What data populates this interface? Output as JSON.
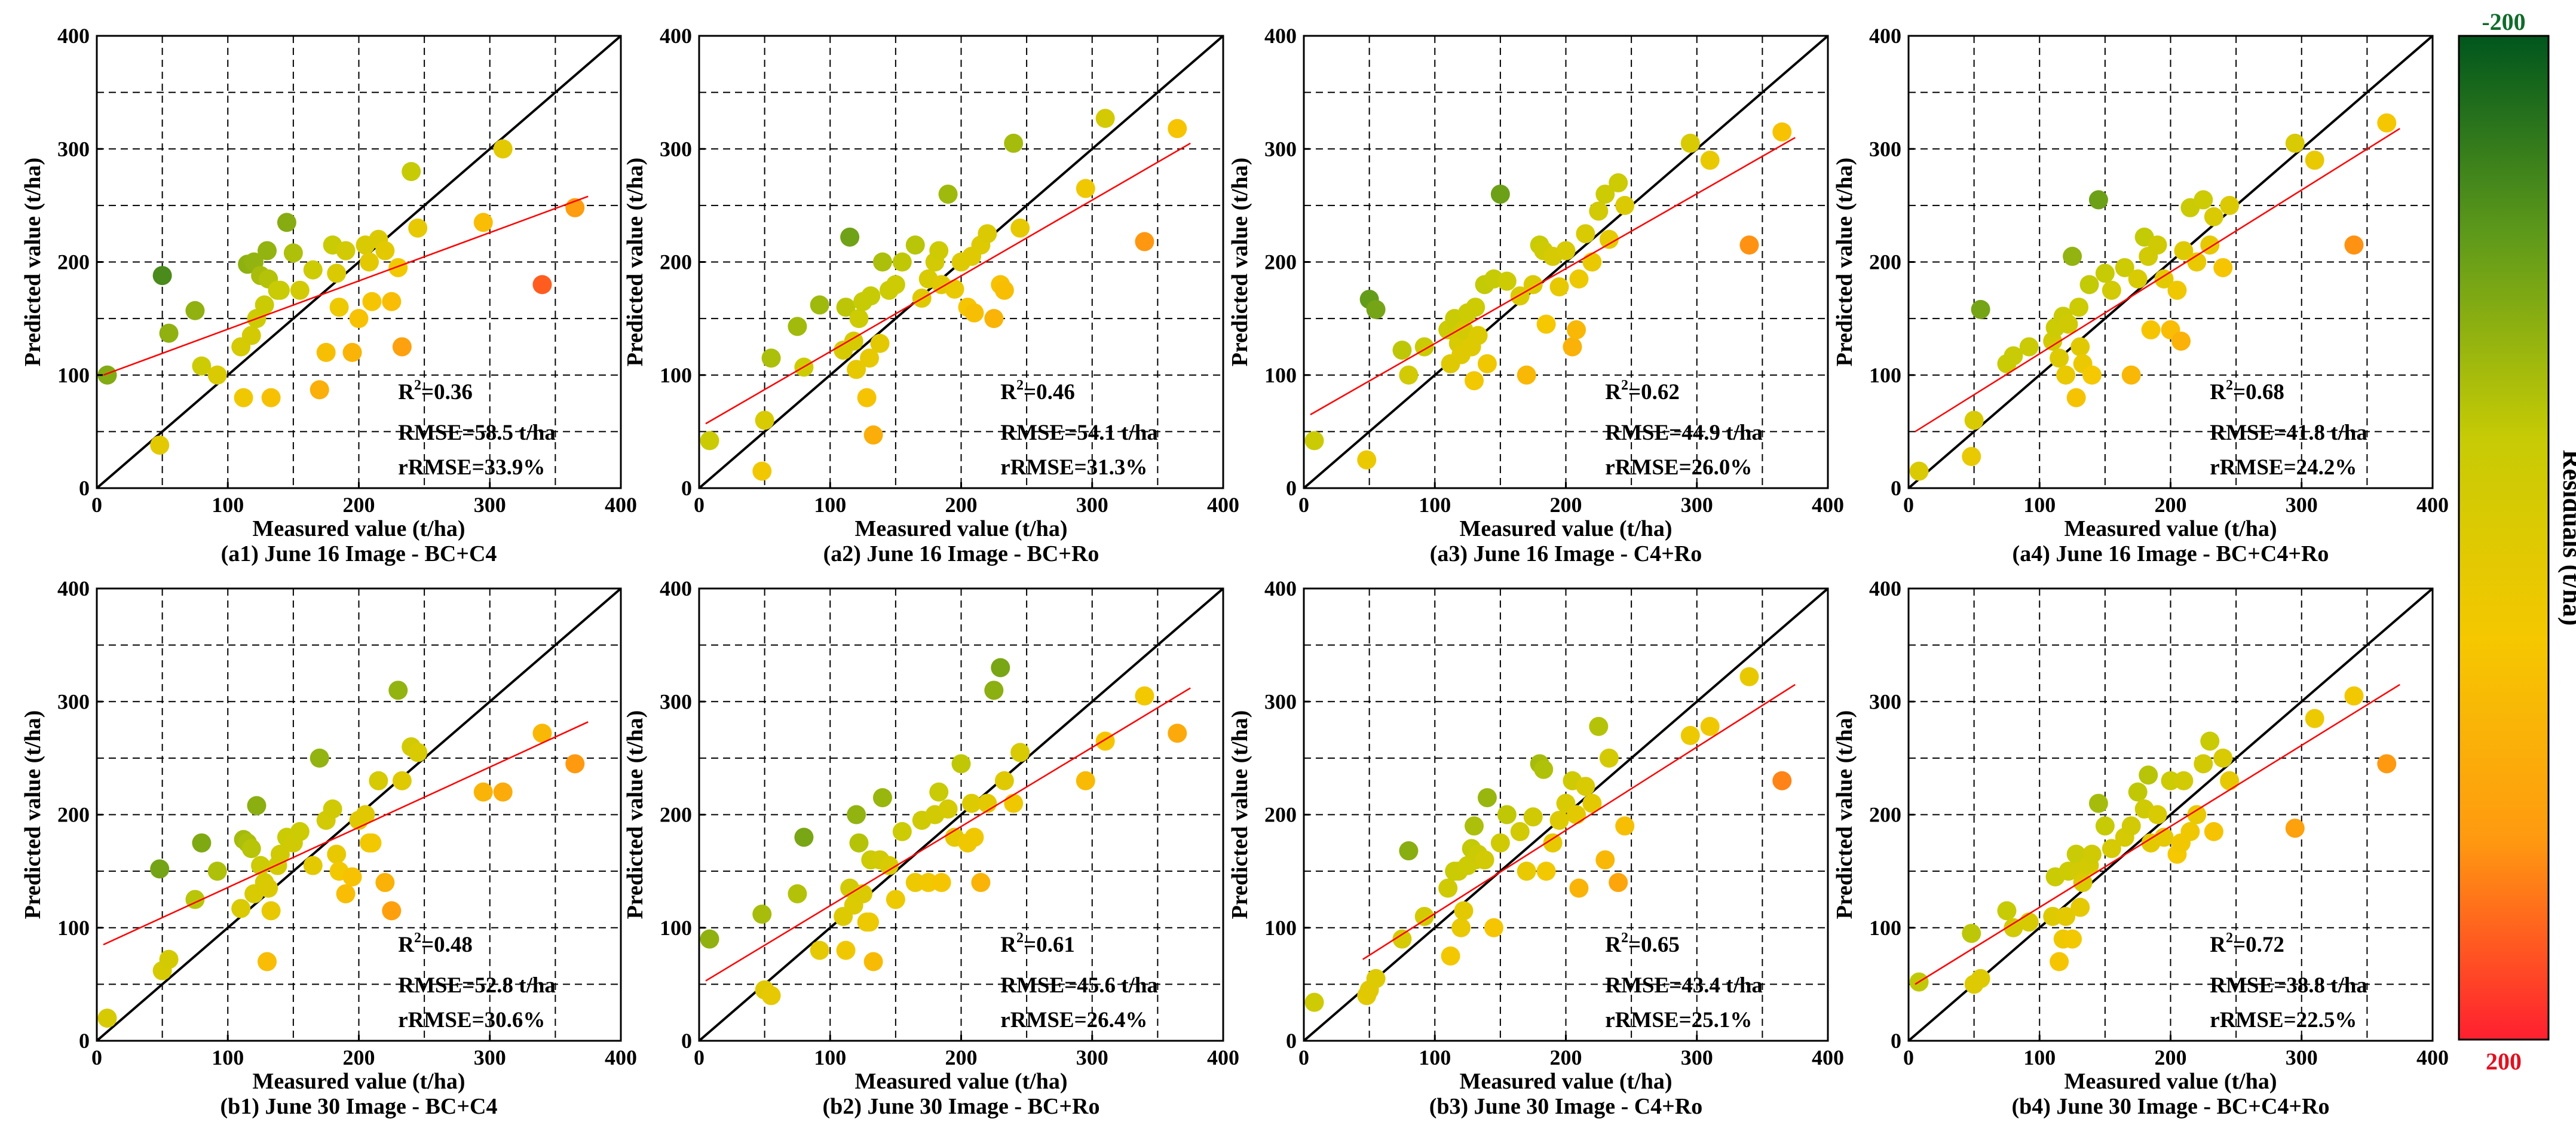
{
  "colorbar": {
    "label": "Residuals (t/ha)",
    "top_tick": "-200",
    "bottom_tick": "200",
    "colors": [
      "#00561d",
      "#5f9a1a",
      "#c6cb05",
      "#f5c800",
      "#ff9a10",
      "#ff1f30"
    ]
  },
  "chart_data": [
    {
      "type": "scatter",
      "caption": "(a1) June 16 Image - BC+C4",
      "xlabel": "Measured value (t/ha)",
      "ylabel": "Predicted value (t/ha)",
      "xlim": [
        0,
        400
      ],
      "ylim": [
        0,
        400
      ],
      "ticks": [
        "0",
        "100",
        "200",
        "300",
        "400"
      ],
      "r2_base": "R",
      "r2_sup": "2",
      "r2_value": "=0.36",
      "rmse": "RMSE=58.5 t/ha",
      "rrmse": "rRMSE=33.9%",
      "fit": [
        [
          5,
          100
        ],
        [
          375,
          258
        ]
      ],
      "x": [
        8,
        48,
        50,
        55,
        75,
        80,
        92,
        110,
        112,
        115,
        118,
        120,
        122,
        125,
        128,
        130,
        131,
        133,
        138,
        140,
        145,
        150,
        155,
        165,
        170,
        175,
        180,
        183,
        185,
        190,
        195,
        200,
        205,
        208,
        210,
        215,
        220,
        225,
        230,
        233,
        240,
        245,
        295,
        310,
        340,
        365
      ],
      "y": [
        100,
        38,
        188,
        137,
        157,
        108,
        100,
        125,
        80,
        198,
        135,
        200,
        150,
        188,
        162,
        210,
        185,
        80,
        175,
        175,
        235,
        208,
        175,
        193,
        87,
        120,
        215,
        190,
        160,
        210,
        120,
        150,
        215,
        200,
        165,
        220,
        210,
        165,
        195,
        125,
        280,
        230,
        235,
        300,
        180,
        248
      ]
    },
    {
      "type": "scatter",
      "caption": "(a2) June 16 Image - BC+Ro",
      "xlabel": "Measured value (t/ha)",
      "ylabel": "Predicted value (t/ha)",
      "xlim": [
        0,
        400
      ],
      "ylim": [
        0,
        400
      ],
      "ticks": [
        "0",
        "100",
        "200",
        "300",
        "400"
      ],
      "r2_base": "R",
      "r2_sup": "2",
      "r2_value": "=0.46",
      "rmse": "RMSE=54.1 t/ha",
      "rrmse": "rRMSE=31.3%",
      "fit": [
        [
          5,
          57
        ],
        [
          375,
          305
        ]
      ],
      "x": [
        8,
        48,
        50,
        55,
        75,
        80,
        92,
        110,
        112,
        115,
        118,
        120,
        122,
        125,
        128,
        130,
        131,
        133,
        138,
        140,
        145,
        150,
        155,
        165,
        170,
        175,
        180,
        183,
        185,
        190,
        195,
        200,
        205,
        208,
        210,
        215,
        220,
        225,
        230,
        233,
        240,
        245,
        295,
        310,
        340,
        365
      ],
      "y": [
        42,
        15,
        60,
        115,
        143,
        107,
        162,
        122,
        160,
        222,
        130,
        105,
        150,
        165,
        80,
        115,
        170,
        47,
        128,
        200,
        175,
        180,
        200,
        215,
        168,
        185,
        200,
        210,
        180,
        260,
        176,
        200,
        160,
        205,
        155,
        215,
        225,
        150,
        180,
        175,
        305,
        230,
        265,
        327,
        218,
        318
      ]
    },
    {
      "type": "scatter",
      "caption": "(a3) June 16 Image - C4+Ro",
      "xlabel": "Measured value (t/ha)",
      "ylabel": "Predicted value (t/ha)",
      "xlim": [
        0,
        400
      ],
      "ylim": [
        0,
        400
      ],
      "ticks": [
        "0",
        "100",
        "200",
        "300",
        "400"
      ],
      "r2_base": "R",
      "r2_sup": "2",
      "r2_value": "=0.62",
      "rmse": "RMSE=44.9 t/ha",
      "rrmse": "rRMSE=26.0%",
      "fit": [
        [
          5,
          65
        ],
        [
          375,
          310
        ]
      ],
      "x": [
        8,
        48,
        50,
        55,
        75,
        80,
        92,
        110,
        112,
        115,
        118,
        120,
        122,
        125,
        128,
        130,
        131,
        133,
        138,
        140,
        145,
        150,
        155,
        165,
        170,
        175,
        180,
        183,
        185,
        190,
        195,
        200,
        205,
        208,
        210,
        215,
        220,
        225,
        230,
        233,
        240,
        245,
        295,
        310,
        340,
        365
      ],
      "y": [
        42,
        25,
        167,
        158,
        122,
        100,
        125,
        140,
        110,
        150,
        128,
        118,
        140,
        155,
        125,
        95,
        160,
        135,
        180,
        110,
        185,
        260,
        183,
        170,
        100,
        180,
        215,
        210,
        145,
        205,
        178,
        210,
        125,
        140,
        185,
        225,
        200,
        245,
        260,
        220,
        270,
        250,
        305,
        290,
        215,
        315
      ]
    },
    {
      "type": "scatter",
      "caption": "(a4) June 16 Image - BC+C4+Ro",
      "xlabel": "Measured value (t/ha)",
      "ylabel": "Predicted value (t/ha)",
      "xlim": [
        0,
        400
      ],
      "ylim": [
        0,
        400
      ],
      "ticks": [
        "0",
        "100",
        "200",
        "300",
        "400"
      ],
      "r2_base": "R",
      "r2_sup": "2",
      "r2_value": "=0.68",
      "rmse": "RMSE=41.8 t/ha",
      "rrmse": "rRMSE=24.2%",
      "fit": [
        [
          5,
          50
        ],
        [
          375,
          318
        ]
      ],
      "x": [
        8,
        48,
        50,
        55,
        75,
        80,
        92,
        110,
        112,
        115,
        118,
        120,
        122,
        125,
        128,
        130,
        131,
        133,
        138,
        140,
        145,
        150,
        155,
        165,
        170,
        175,
        180,
        183,
        185,
        190,
        195,
        200,
        205,
        208,
        210,
        215,
        220,
        225,
        230,
        233,
        240,
        245,
        295,
        310,
        340,
        365
      ],
      "y": [
        15,
        28,
        60,
        158,
        110,
        117,
        125,
        130,
        142,
        115,
        152,
        100,
        145,
        205,
        80,
        160,
        125,
        110,
        180,
        100,
        255,
        190,
        175,
        195,
        100,
        185,
        222,
        205,
        140,
        215,
        185,
        140,
        175,
        130,
        210,
        248,
        200,
        255,
        215,
        240,
        195,
        250,
        305,
        290,
        215,
        323
      ]
    },
    {
      "type": "scatter",
      "caption": "(b1) June 30 Image - BC+C4",
      "xlabel": "Measured value (t/ha)",
      "ylabel": "Predicted value (t/ha)",
      "xlim": [
        0,
        400
      ],
      "ylim": [
        0,
        400
      ],
      "ticks": [
        "0",
        "100",
        "200",
        "300",
        "400"
      ],
      "r2_base": "R",
      "r2_sup": "2",
      "r2_value": "=0.48",
      "rmse": "RMSE=52.8 t/ha",
      "rrmse": "rRMSE=30.6%",
      "fit": [
        [
          5,
          85
        ],
        [
          375,
          282
        ]
      ],
      "x": [
        8,
        48,
        50,
        55,
        75,
        80,
        92,
        110,
        112,
        115,
        118,
        120,
        122,
        125,
        128,
        130,
        131,
        133,
        138,
        140,
        145,
        150,
        155,
        165,
        170,
        175,
        180,
        183,
        185,
        190,
        195,
        200,
        205,
        208,
        210,
        215,
        220,
        225,
        230,
        233,
        240,
        245,
        295,
        310,
        340,
        365
      ],
      "y": [
        20,
        152,
        62,
        72,
        125,
        175,
        150,
        117,
        178,
        175,
        170,
        130,
        208,
        155,
        140,
        70,
        135,
        115,
        155,
        165,
        180,
        175,
        185,
        155,
        250,
        195,
        205,
        165,
        150,
        130,
        145,
        195,
        200,
        175,
        175,
        230,
        140,
        115,
        310,
        230,
        260,
        255,
        220,
        220,
        272,
        245
      ]
    },
    {
      "type": "scatter",
      "caption": "(b2) June 30 Image - BC+Ro",
      "xlabel": "Measured value (t/ha)",
      "ylabel": "Predicted value (t/ha)",
      "xlim": [
        0,
        400
      ],
      "ylim": [
        0,
        400
      ],
      "ticks": [
        "0",
        "100",
        "200",
        "300",
        "400"
      ],
      "r2_base": "R",
      "r2_sup": "2",
      "r2_value": "=0.61",
      "rmse": "RMSE=45.6 t/ha",
      "rrmse": "rRMSE=26.4%",
      "fit": [
        [
          5,
          53
        ],
        [
          375,
          312
        ]
      ],
      "x": [
        8,
        48,
        50,
        55,
        75,
        80,
        92,
        110,
        112,
        115,
        118,
        120,
        122,
        125,
        128,
        130,
        131,
        133,
        138,
        140,
        145,
        150,
        155,
        165,
        170,
        175,
        180,
        183,
        185,
        190,
        195,
        200,
        205,
        208,
        210,
        215,
        220,
        225,
        230,
        233,
        240,
        245,
        295,
        310,
        340,
        365
      ],
      "y": [
        90,
        112,
        45,
        40,
        130,
        180,
        80,
        110,
        80,
        135,
        120,
        200,
        175,
        130,
        105,
        105,
        160,
        70,
        160,
        215,
        155,
        125,
        185,
        140,
        195,
        140,
        200,
        220,
        140,
        205,
        180,
        245,
        175,
        210,
        180,
        140,
        210,
        310,
        330,
        230,
        210,
        255,
        230,
        265,
        305,
        272
      ]
    },
    {
      "type": "scatter",
      "caption": "(b3) June 30 Image - C4+Ro",
      "xlabel": "Measured value (t/ha)",
      "ylabel": "Predicted value (t/ha)",
      "xlim": [
        0,
        400
      ],
      "ylim": [
        0,
        400
      ],
      "ticks": [
        "0",
        "100",
        "200",
        "300",
        "400"
      ],
      "r2_base": "R",
      "r2_sup": "2",
      "r2_value": "=0.65",
      "rmse": "RMSE=43.4 t/ha",
      "rrmse": "rRMSE=25.1%",
      "fit": [
        [
          45,
          72
        ],
        [
          375,
          315
        ]
      ],
      "x": [
        8,
        48,
        50,
        55,
        75,
        80,
        92,
        110,
        112,
        115,
        118,
        120,
        122,
        125,
        128,
        130,
        131,
        133,
        138,
        140,
        145,
        150,
        155,
        165,
        170,
        175,
        180,
        183,
        185,
        190,
        195,
        200,
        205,
        208,
        210,
        215,
        220,
        225,
        230,
        233,
        240,
        245,
        295,
        310,
        340,
        365
      ],
      "y": [
        34,
        40,
        45,
        55,
        90,
        168,
        110,
        135,
        75,
        150,
        150,
        100,
        115,
        155,
        170,
        190,
        160,
        165,
        160,
        215,
        100,
        175,
        200,
        185,
        150,
        198,
        245,
        240,
        150,
        175,
        195,
        210,
        230,
        200,
        135,
        225,
        210,
        278,
        160,
        250,
        140,
        190,
        270,
        278,
        322,
        230
      ]
    },
    {
      "type": "scatter",
      "caption": "(b4) June 30 Image - BC+C4+Ro",
      "xlabel": "Measured value (t/ha)",
      "ylabel": "Predicted value (t/ha)",
      "xlim": [
        0,
        400
      ],
      "ylim": [
        0,
        400
      ],
      "ticks": [
        "0",
        "100",
        "200",
        "300",
        "400"
      ],
      "r2_base": "R",
      "r2_sup": "2",
      "r2_value": "=0.72",
      "rmse": "RMSE=38.8 t/ha",
      "rrmse": "rRMSE=22.5%",
      "fit": [
        [
          5,
          50
        ],
        [
          375,
          315
        ]
      ],
      "x": [
        8,
        48,
        50,
        55,
        75,
        80,
        92,
        110,
        112,
        115,
        118,
        120,
        122,
        125,
        128,
        130,
        131,
        133,
        138,
        140,
        145,
        150,
        155,
        165,
        170,
        175,
        180,
        183,
        185,
        190,
        195,
        200,
        205,
        208,
        210,
        215,
        220,
        225,
        230,
        233,
        240,
        245,
        295,
        310,
        340,
        365
      ],
      "y": [
        52,
        95,
        50,
        55,
        115,
        100,
        105,
        110,
        145,
        70,
        90,
        110,
        150,
        90,
        165,
        150,
        118,
        140,
        155,
        165,
        210,
        190,
        170,
        180,
        190,
        220,
        205,
        235,
        175,
        200,
        180,
        230,
        165,
        175,
        230,
        185,
        200,
        245,
        265,
        185,
        250,
        230,
        188,
        285,
        305,
        245
      ]
    }
  ]
}
